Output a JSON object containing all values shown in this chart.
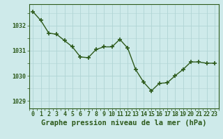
{
  "x": [
    0,
    1,
    2,
    3,
    4,
    5,
    6,
    7,
    8,
    9,
    10,
    11,
    12,
    13,
    14,
    15,
    16,
    17,
    18,
    19,
    20,
    21,
    22,
    23
  ],
  "y": [
    1032.55,
    1032.2,
    1031.7,
    1031.65,
    1031.4,
    1031.15,
    1030.75,
    1030.72,
    1031.05,
    1031.15,
    1031.15,
    1031.45,
    1031.1,
    1030.25,
    1029.75,
    1029.4,
    1029.7,
    1029.72,
    1030.0,
    1030.25,
    1030.55,
    1030.55,
    1030.5,
    1030.5
  ],
  "line_color": "#2d5a1b",
  "marker": "+",
  "marker_size": 4.0,
  "bg_color": "#ceeaea",
  "grid_color": "#b0d4d4",
  "xlabel": "Graphe pression niveau de la mer (hPa)",
  "xlabel_fontsize": 7.5,
  "xlabel_color": "#2d5a1b",
  "tick_color": "#2d5a1b",
  "tick_fontsize": 6,
  "ytick_labels": [
    "1029",
    "1030",
    "1031",
    "1032"
  ],
  "ytick_values": [
    1029,
    1030,
    1031,
    1032
  ],
  "ylim": [
    1028.7,
    1032.85
  ],
  "xlim": [
    -0.5,
    23.5
  ],
  "title": ""
}
